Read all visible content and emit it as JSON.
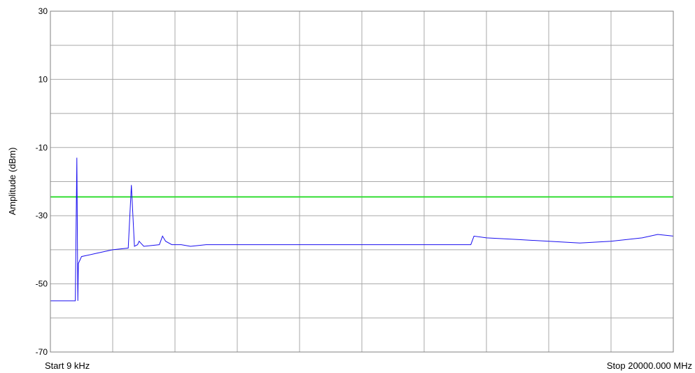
{
  "chart_data": {
    "type": "line",
    "title": "",
    "ylabel": "Amplitude (dBm)",
    "xlabel_start": "Start 9 kHz",
    "xlabel_stop": "Stop 20000.000 MHz",
    "x_unit": "MHz",
    "xlim": [
      0.009,
      20000
    ],
    "ylim": [
      -70,
      30
    ],
    "y_ticks": [
      30,
      10,
      -10,
      -30,
      -50,
      -70
    ],
    "x_divisions": 10,
    "y_divisions": 10,
    "grid": true,
    "colors": {
      "trace": "#1a0ff0",
      "limit": "#33dd33",
      "grid": "#a9a9a9",
      "frame": "#808080"
    },
    "limit_line": {
      "y": -24.5
    },
    "series": [
      {
        "values_x": [
          0.009,
          100,
          400,
          700,
          800,
          850,
          880,
          900,
          950,
          1000,
          1500,
          2000,
          2500,
          2600,
          2700,
          2800,
          2850,
          2900,
          3000,
          3500,
          3600,
          3700,
          3900,
          4000,
          4200,
          4500,
          5000,
          6000,
          7000,
          8000,
          9000,
          10000,
          11000,
          12000,
          13000,
          13500,
          13600,
          14000,
          15000,
          16000,
          17000,
          18000,
          19000,
          19500,
          20000
        ],
        "values_y": [
          -55,
          -55,
          -55,
          -55,
          -55,
          -13,
          -55,
          -44,
          -43,
          -42,
          -41,
          -40,
          -39.5,
          -21,
          -39,
          -38.5,
          -37.5,
          -38,
          -39,
          -38.5,
          -36,
          -37.5,
          -38.5,
          -38.5,
          -38.5,
          -39,
          -38.5,
          -38.5,
          -38.5,
          -38.5,
          -38.5,
          -38.5,
          -38.5,
          -38.5,
          -38.5,
          -38.5,
          -36,
          -36.5,
          -37,
          -37.5,
          -38,
          -37.5,
          -36.5,
          -35.5,
          -36
        ]
      }
    ]
  }
}
